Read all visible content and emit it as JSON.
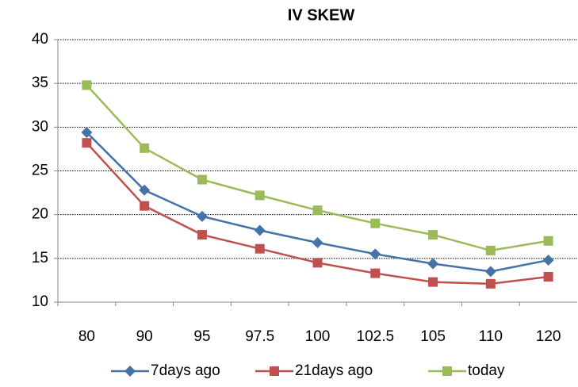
{
  "chart_data": {
    "type": "line",
    "title": "IV SKEW",
    "categories": [
      "80",
      "90",
      "95",
      "97.5",
      "100",
      "102.5",
      "105",
      "110",
      "120"
    ],
    "series": [
      {
        "name": "7days ago",
        "color": "#4572a7",
        "marker": "diamond",
        "values": [
          29.4,
          22.8,
          19.8,
          18.2,
          16.8,
          15.5,
          14.4,
          13.5,
          14.8
        ]
      },
      {
        "name": "21days ago",
        "color": "#c0504d",
        "marker": "square",
        "values": [
          28.2,
          21.0,
          17.7,
          16.1,
          14.5,
          13.3,
          12.3,
          12.1,
          12.9
        ]
      },
      {
        "name": "today",
        "color": "#9bbb59",
        "marker": "square",
        "values": [
          34.8,
          27.6,
          24.0,
          22.2,
          20.5,
          19.0,
          17.7,
          15.9,
          17.0
        ]
      }
    ],
    "ylim": [
      10,
      40
    ],
    "yticks": [
      10,
      15,
      20,
      25,
      30,
      35,
      40
    ],
    "grid": true,
    "legend": "bottom"
  }
}
